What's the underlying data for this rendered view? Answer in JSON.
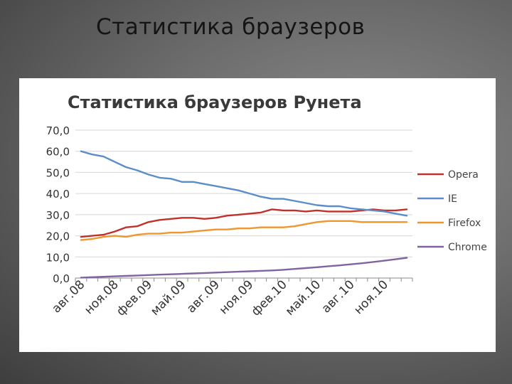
{
  "slide": {
    "title": "Статистика браузеров"
  },
  "chart_data": {
    "type": "line",
    "title": "Статистика браузеров Рунета",
    "xlabel": "",
    "ylabel": "",
    "ylim": [
      0,
      70
    ],
    "yticks": [
      "0,0",
      "10,0",
      "20,0",
      "30,0",
      "40,0",
      "50,0",
      "60,0",
      "70,0"
    ],
    "grid": true,
    "legend_position": "right",
    "x": [
      "авг.08",
      "сен.08",
      "окт.08",
      "ноя.08",
      "дек.08",
      "янв.09",
      "фев.09",
      "мар.09",
      "апр.09",
      "май.09",
      "июн.09",
      "июл.09",
      "авг.09",
      "сен.09",
      "окт.09",
      "ноя.09",
      "дек.09",
      "янв.10",
      "фев.10",
      "мар.10",
      "апр.10",
      "май.10",
      "июн.10",
      "июл.10",
      "авг.10",
      "сен.10",
      "окт.10",
      "ноя.10",
      "дек.10",
      "янв.11"
    ],
    "x_tick_labels": [
      "авг.08",
      "ноя.08",
      "фев.09",
      "май.09",
      "авг.09",
      "ноя.09",
      "фев.10",
      "май.10",
      "авг.10",
      "ноя.10"
    ],
    "series": [
      {
        "name": "Opera",
        "color": "#c0312b",
        "values": [
          19.5,
          20.0,
          20.5,
          22.0,
          24.0,
          24.5,
          26.5,
          27.5,
          28.0,
          28.5,
          28.5,
          28.0,
          28.5,
          29.5,
          30.0,
          30.5,
          31.0,
          32.5,
          32.0,
          32.0,
          31.5,
          32.0,
          31.5,
          31.5,
          31.5,
          32.0,
          32.5,
          32.0,
          32.0,
          32.5
        ]
      },
      {
        "name": "IE",
        "color": "#5b8ec9",
        "values": [
          60.0,
          58.5,
          57.5,
          55.0,
          52.5,
          51.0,
          49.0,
          47.5,
          47.0,
          45.5,
          45.5,
          44.5,
          43.5,
          42.5,
          41.5,
          40.0,
          38.5,
          37.5,
          37.5,
          36.5,
          35.5,
          34.5,
          34.0,
          34.0,
          33.0,
          32.5,
          32.0,
          31.5,
          30.5,
          29.5
        ]
      },
      {
        "name": "Firefox",
        "color": "#f0962e",
        "values": [
          18.0,
          18.5,
          19.5,
          20.0,
          19.5,
          20.5,
          21.0,
          21.0,
          21.5,
          21.5,
          22.0,
          22.5,
          23.0,
          23.0,
          23.5,
          23.5,
          24.0,
          24.0,
          24.0,
          24.5,
          25.5,
          26.5,
          27.0,
          27.0,
          27.0,
          26.5,
          26.5,
          26.5,
          26.5,
          26.5
        ]
      },
      {
        "name": "Chrome",
        "color": "#8064a2",
        "values": [
          0.2,
          0.4,
          0.6,
          0.8,
          1.0,
          1.2,
          1.4,
          1.6,
          1.8,
          2.0,
          2.2,
          2.4,
          2.6,
          2.8,
          3.0,
          3.2,
          3.4,
          3.6,
          3.9,
          4.3,
          4.7,
          5.1,
          5.6,
          6.0,
          6.5,
          7.0,
          7.6,
          8.2,
          8.9,
          9.6
        ]
      }
    ]
  }
}
